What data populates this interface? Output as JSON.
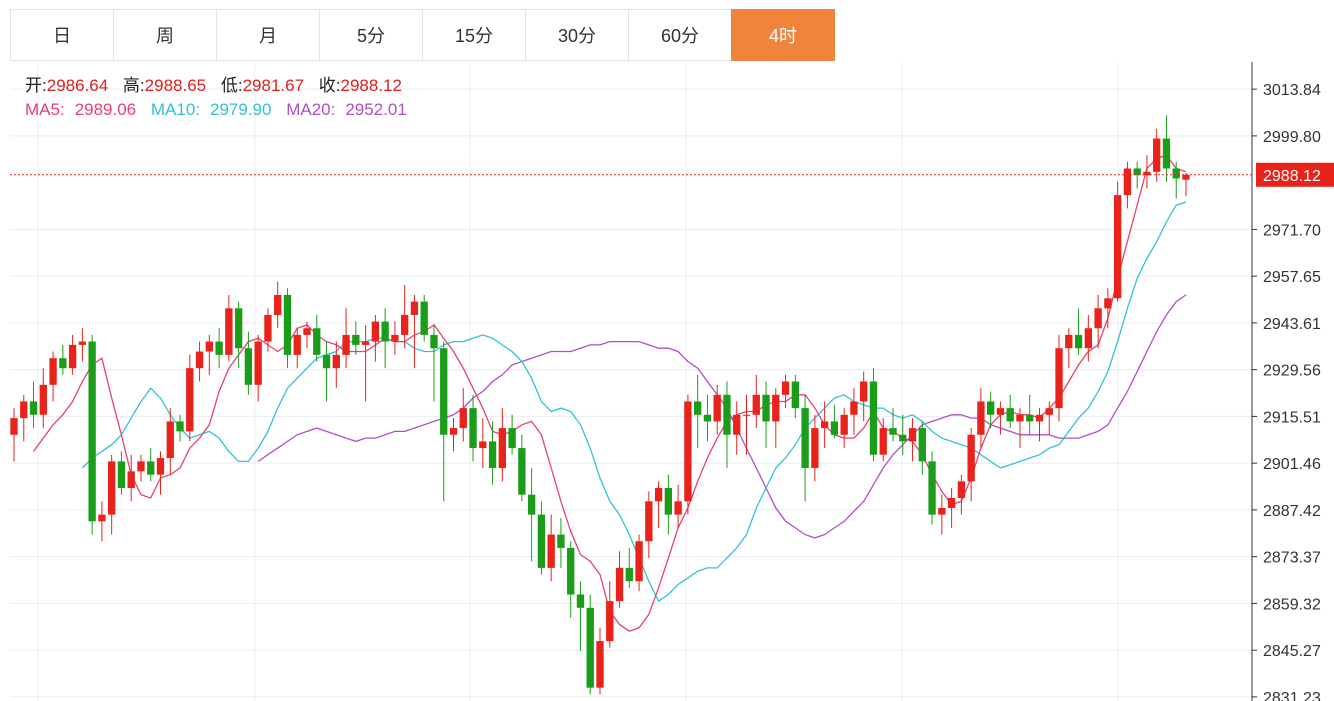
{
  "tabs": [
    {
      "label": "日",
      "active": false
    },
    {
      "label": "周",
      "active": false
    },
    {
      "label": "月",
      "active": false
    },
    {
      "label": "5分",
      "active": false
    },
    {
      "label": "15分",
      "active": false
    },
    {
      "label": "30分",
      "active": false
    },
    {
      "label": "60分",
      "active": false
    },
    {
      "label": "4时",
      "active": true
    }
  ],
  "ohlc_info": {
    "open_label": "开:",
    "open_value": "2986.64",
    "high_label": "高:",
    "high_value": "2988.65",
    "low_label": "低:",
    "low_value": "2981.67",
    "close_label": "收:",
    "close_value": "2988.12"
  },
  "ma_info": {
    "ma5_label": "MA5:",
    "ma5_value": "2989.06",
    "ma10_label": "MA10:",
    "ma10_value": "2979.90",
    "ma20_label": "MA20:",
    "ma20_value": "2952.01"
  },
  "colors": {
    "up": "#e8231b",
    "down": "#1a9e1a",
    "ma5": "#e8416e",
    "ma10": "#33c2d6",
    "ma20": "#b14fc5",
    "active_tab": "#f0843c",
    "grid": "#e9ecf2",
    "price_line": "#e8231b"
  },
  "chart_data": {
    "type": "candlestick",
    "y_ticks": [
      "3013.84",
      "2999.80",
      "2971.70",
      "2957.65",
      "2943.61",
      "2929.56",
      "2915.51",
      "2901.46",
      "2887.42",
      "2873.37",
      "2859.32",
      "2845.27",
      "2831.23"
    ],
    "ylim": [
      2830,
      3022
    ],
    "last_price_label": "2988.12",
    "candles": [
      [
        2910,
        2918,
        2902,
        2915
      ],
      [
        2915,
        2922,
        2908,
        2920
      ],
      [
        2920,
        2926,
        2912,
        2916
      ],
      [
        2916,
        2930,
        2912,
        2925
      ],
      [
        2925,
        2935,
        2920,
        2933
      ],
      [
        2933,
        2937,
        2928,
        2930
      ],
      [
        2930,
        2940,
        2928,
        2937
      ],
      [
        2937,
        2942,
        2932,
        2938
      ],
      [
        2938,
        2940,
        2880,
        2884
      ],
      [
        2884,
        2890,
        2878,
        2886
      ],
      [
        2886,
        2904,
        2880,
        2902
      ],
      [
        2902,
        2905,
        2892,
        2894
      ],
      [
        2894,
        2904,
        2890,
        2899
      ],
      [
        2899,
        2904,
        2896,
        2902
      ],
      [
        2902,
        2906,
        2896,
        2898
      ],
      [
        2898,
        2905,
        2892,
        2903
      ],
      [
        2903,
        2918,
        2898,
        2914
      ],
      [
        2914,
        2916,
        2908,
        2911
      ],
      [
        2911,
        2934,
        2908,
        2930
      ],
      [
        2930,
        2938,
        2926,
        2935
      ],
      [
        2935,
        2940,
        2928,
        2938
      ],
      [
        2938,
        2942,
        2930,
        2934
      ],
      [
        2934,
        2952,
        2932,
        2948
      ],
      [
        2948,
        2950,
        2930,
        2936
      ],
      [
        2936,
        2941,
        2922,
        2925
      ],
      [
        2925,
        2940,
        2920,
        2938
      ],
      [
        2938,
        2948,
        2935,
        2946
      ],
      [
        2946,
        2956,
        2942,
        2952
      ],
      [
        2952,
        2954,
        2930,
        2934
      ],
      [
        2934,
        2942,
        2930,
        2940
      ],
      [
        2940,
        2944,
        2936,
        2942
      ],
      [
        2942,
        2946,
        2932,
        2934
      ],
      [
        2934,
        2938,
        2920,
        2930
      ],
      [
        2930,
        2938,
        2924,
        2934
      ],
      [
        2934,
        2948,
        2930,
        2940
      ],
      [
        2940,
        2944,
        2934,
        2937
      ],
      [
        2937,
        2943,
        2920,
        2938
      ],
      [
        2938,
        2946,
        2932,
        2944
      ],
      [
        2944,
        2948,
        2930,
        2938
      ],
      [
        2938,
        2944,
        2934,
        2940
      ],
      [
        2940,
        2955,
        2936,
        2946
      ],
      [
        2946,
        2952,
        2930,
        2950
      ],
      [
        2950,
        2952,
        2938,
        2940
      ],
      [
        2940,
        2943,
        2920,
        2936
      ],
      [
        2936,
        2938,
        2890,
        2910
      ],
      [
        2910,
        2915,
        2905,
        2912
      ],
      [
        2912,
        2924,
        2908,
        2918
      ],
      [
        2918,
        2922,
        2902,
        2906
      ],
      [
        2906,
        2915,
        2900,
        2908
      ],
      [
        2908,
        2914,
        2895,
        2900
      ],
      [
        2900,
        2918,
        2896,
        2912
      ],
      [
        2912,
        2916,
        2904,
        2906
      ],
      [
        2906,
        2910,
        2890,
        2892
      ],
      [
        2892,
        2900,
        2872,
        2886
      ],
      [
        2886,
        2890,
        2868,
        2870
      ],
      [
        2870,
        2886,
        2866,
        2880
      ],
      [
        2880,
        2885,
        2870,
        2876
      ],
      [
        2876,
        2878,
        2855,
        2862
      ],
      [
        2862,
        2866,
        2845,
        2858
      ],
      [
        2858,
        2862,
        2832,
        2834
      ],
      [
        2834,
        2852,
        2832,
        2848
      ],
      [
        2848,
        2866,
        2846,
        2860
      ],
      [
        2860,
        2875,
        2858,
        2870
      ],
      [
        2870,
        2876,
        2864,
        2866
      ],
      [
        2866,
        2880,
        2863,
        2878
      ],
      [
        2878,
        2893,
        2873,
        2890
      ],
      [
        2890,
        2896,
        2882,
        2894
      ],
      [
        2894,
        2898,
        2880,
        2886
      ],
      [
        2886,
        2895,
        2882,
        2890
      ],
      [
        2890,
        2922,
        2886,
        2920
      ],
      [
        2920,
        2928,
        2906,
        2916
      ],
      [
        2916,
        2922,
        2908,
        2914
      ],
      [
        2914,
        2925,
        2910,
        2922
      ],
      [
        2922,
        2926,
        2900,
        2910
      ],
      [
        2910,
        2920,
        2904,
        2916
      ],
      [
        2916,
        2922,
        2904,
        2916
      ],
      [
        2916,
        2928,
        2912,
        2922
      ],
      [
        2922,
        2926,
        2906,
        2914
      ],
      [
        2914,
        2924,
        2906,
        2922
      ],
      [
        2922,
        2928,
        2918,
        2926
      ],
      [
        2926,
        2928,
        2915,
        2918
      ],
      [
        2918,
        2922,
        2890,
        2900
      ],
      [
        2900,
        2916,
        2896,
        2912
      ],
      [
        2912,
        2920,
        2906,
        2914
      ],
      [
        2914,
        2919,
        2909,
        2910
      ],
      [
        2910,
        2918,
        2906,
        2916
      ],
      [
        2916,
        2924,
        2910,
        2920
      ],
      [
        2920,
        2929,
        2914,
        2926
      ],
      [
        2926,
        2930,
        2902,
        2904
      ],
      [
        2904,
        2915,
        2902,
        2912
      ],
      [
        2912,
        2918,
        2908,
        2910
      ],
      [
        2910,
        2916,
        2904,
        2908
      ],
      [
        2908,
        2915,
        2902,
        2912
      ],
      [
        2912,
        2914,
        2898,
        2902
      ],
      [
        2902,
        2905,
        2883,
        2886
      ],
      [
        2886,
        2892,
        2880,
        2888
      ],
      [
        2888,
        2894,
        2882,
        2891
      ],
      [
        2891,
        2898,
        2886,
        2896
      ],
      [
        2896,
        2912,
        2890,
        2910
      ],
      [
        2910,
        2924,
        2906,
        2920
      ],
      [
        2920,
        2923,
        2912,
        2916
      ],
      [
        2916,
        2920,
        2910,
        2918
      ],
      [
        2918,
        2922,
        2912,
        2914
      ],
      [
        2914,
        2918,
        2906,
        2916
      ],
      [
        2916,
        2922,
        2910,
        2914
      ],
      [
        2914,
        2918,
        2908,
        2916
      ],
      [
        2916,
        2920,
        2910,
        2918
      ],
      [
        2918,
        2940,
        2914,
        2936
      ],
      [
        2936,
        2942,
        2930,
        2940
      ],
      [
        2940,
        2948,
        2934,
        2936
      ],
      [
        2936,
        2946,
        2932,
        2942
      ],
      [
        2942,
        2952,
        2936,
        2948
      ],
      [
        2948,
        2954,
        2942,
        2951
      ],
      [
        2951,
        2986,
        2950,
        2982
      ],
      [
        2982,
        2992,
        2978,
        2990
      ],
      [
        2990,
        2992,
        2984,
        2988
      ],
      [
        2988,
        2994,
        2984,
        2989
      ],
      [
        2989,
        3002,
        2986,
        2999
      ],
      [
        2999,
        3006,
        2986,
        2990
      ],
      [
        2990,
        2992,
        2981,
        2987
      ],
      [
        2986.64,
        2988.65,
        2981.67,
        2988.12
      ]
    ],
    "ma5": [
      2905,
      2909,
      2913,
      2916,
      2920,
      2926,
      2931,
      2933,
      2921,
      2910,
      2898,
      2892,
      2891,
      2897,
      2898,
      2900,
      2906,
      2909,
      2913,
      2923,
      2930,
      2934,
      2938,
      2939,
      2937,
      2935,
      2937,
      2942,
      2943,
      2940,
      2938,
      2937,
      2935,
      2935,
      2935,
      2937,
      2939,
      2938,
      2938,
      2940,
      2941,
      2943,
      2939,
      2935,
      2930,
      2924,
      2918,
      2911,
      2910,
      2911,
      2913,
      2914,
      2910,
      2900,
      2890,
      2881,
      2874,
      2872,
      2868,
      2857,
      2853,
      2851,
      2852,
      2856,
      2864,
      2873,
      2882,
      2888,
      2896,
      2903,
      2909,
      2914,
      2916,
      2917,
      2917,
      2919,
      2920,
      2920,
      2922,
      2922,
      2918,
      2913,
      2910,
      2909,
      2909,
      2912,
      2917,
      2912,
      2911,
      2909,
      2908,
      2904,
      2898,
      2893,
      2889,
      2890,
      2897,
      2906,
      2913,
      2916,
      2917,
      2916,
      2916,
      2915,
      2918,
      2921,
      2926,
      2931,
      2935,
      2937,
      2945,
      2957,
      2968,
      2979,
      2990,
      2993,
      2994,
      2990,
      2989.06
    ],
    "ma10": [
      2900,
      2903,
      2905,
      2907,
      2910,
      2915,
      2920,
      2924,
      2921,
      2916,
      2912,
      2909,
      2910,
      2911,
      2909,
      2905,
      2902,
      2902,
      2906,
      2911,
      2918,
      2924,
      2927,
      2930,
      2933,
      2934,
      2935,
      2938,
      2938,
      2938,
      2939,
      2939,
      2938,
      2938,
      2936,
      2935,
      2935,
      2937,
      2938,
      2938,
      2939,
      2940,
      2939,
      2937,
      2935,
      2932,
      2927,
      2920,
      2917,
      2918,
      2917,
      2913,
      2906,
      2897,
      2890,
      2886,
      2880,
      2873,
      2866,
      2860,
      2862,
      2865,
      2867,
      2869,
      2870,
      2870,
      2873,
      2876,
      2880,
      2888,
      2894,
      2900,
      2903,
      2907,
      2912,
      2915,
      2918,
      2921,
      2922,
      2920,
      2919,
      2918,
      2918,
      2916,
      2915,
      2916,
      2914,
      2911,
      2909,
      2908,
      2907,
      2906,
      2904,
      2902,
      2900,
      2901,
      2902,
      2903,
      2904,
      2906,
      2907,
      2911,
      2915,
      2918,
      2923,
      2929,
      2938,
      2948,
      2957,
      2963,
      2968,
      2974,
      2979,
      2979.9
    ],
    "ma20": [
      2902,
      2904,
      2906,
      2908,
      2910,
      2911,
      2912,
      2911,
      2910,
      2909,
      2908,
      2909,
      2909,
      2910,
      2911,
      2911,
      2912,
      2913,
      2914,
      2915,
      2916,
      2918,
      2921,
      2923,
      2926,
      2928,
      2931,
      2932,
      2933,
      2934,
      2935,
      2935,
      2935,
      2936,
      2937,
      2937,
      2938,
      2938,
      2938,
      2938,
      2937,
      2936,
      2936,
      2935,
      2932,
      2930,
      2926,
      2922,
      2918,
      2912,
      2906,
      2900,
      2894,
      2888,
      2884,
      2882,
      2880,
      2879,
      2880,
      2882,
      2884,
      2887,
      2890,
      2895,
      2900,
      2904,
      2907,
      2910,
      2913,
      2914,
      2915,
      2916,
      2916,
      2915,
      2915,
      2913,
      2912,
      2911,
      2910,
      2910,
      2910,
      2910,
      2909,
      2909,
      2909,
      2910,
      2911,
      2913,
      2918,
      2923,
      2929,
      2935,
      2941,
      2946,
      2950,
      2952.01
    ]
  }
}
